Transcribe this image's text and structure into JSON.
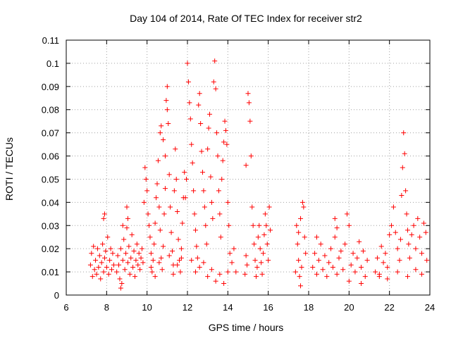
{
  "chart_data": {
    "type": "scatter",
    "title": "Day 104 of 2014, Rate Of TEC Index for receiver str2",
    "xlabel": "GPS time / hours",
    "ylabel": "ROTI / TECUs",
    "xlim": [
      6,
      24
    ],
    "ylim": [
      0,
      0.11
    ],
    "x_ticks": [
      6,
      8,
      10,
      12,
      14,
      16,
      18,
      20,
      22,
      24
    ],
    "y_ticks": [
      0,
      0.01,
      0.02,
      0.03,
      0.04,
      0.05,
      0.06,
      0.07,
      0.08,
      0.09,
      0.1,
      0.11
    ],
    "x_tick_labels": [
      "6",
      "8",
      "10",
      "12",
      "14",
      "16",
      "18",
      "20",
      "22",
      "24"
    ],
    "y_tick_labels": [
      "0",
      "0.01",
      "0.02",
      "0.03",
      "0.04",
      "0.05",
      "0.06",
      "0.07",
      "0.08",
      "0.09",
      "0.1",
      "0.11"
    ],
    "grid": true,
    "legend": "none",
    "marker": "+",
    "color": "#ff0000",
    "series": [
      {
        "points": [
          [
            7.2,
            0.013
          ],
          [
            7.25,
            0.018
          ],
          [
            7.3,
            0.008
          ],
          [
            7.35,
            0.021
          ],
          [
            7.4,
            0.011
          ],
          [
            7.45,
            0.015
          ],
          [
            7.5,
            0.009
          ],
          [
            7.55,
            0.02
          ],
          [
            7.6,
            0.012
          ],
          [
            7.65,
            0.017
          ],
          [
            7.7,
            0.007
          ],
          [
            7.75,
            0.014
          ],
          [
            7.8,
            0.022
          ],
          [
            7.85,
            0.01
          ],
          [
            7.9,
            0.016
          ],
          [
            7.95,
            0.019
          ],
          [
            8.0,
            0.012
          ],
          [
            8.05,
            0.025
          ],
          [
            8.1,
            0.009
          ],
          [
            8.15,
            0.015
          ],
          [
            8.2,
            0.02
          ],
          [
            8.25,
            0.011
          ],
          [
            8.3,
            0.018
          ],
          [
            8.35,
            0.013
          ],
          [
            7.9,
            0.035
          ],
          [
            7.85,
            0.033
          ],
          [
            8.5,
            0.01
          ],
          [
            8.55,
            0.017
          ],
          [
            8.6,
            0.013
          ],
          [
            8.65,
            0.007
          ],
          [
            8.7,
            0.02
          ],
          [
            8.75,
            0.005
          ],
          [
            8.8,
            0.015
          ],
          [
            8.85,
            0.024
          ],
          [
            8.9,
            0.011
          ],
          [
            8.95,
            0.018
          ],
          [
            9.0,
            0.029
          ],
          [
            9.05,
            0.014
          ],
          [
            9.1,
            0.021
          ],
          [
            9.15,
            0.009
          ],
          [
            9.2,
            0.016
          ],
          [
            9.25,
            0.026
          ],
          [
            9.3,
            0.012
          ],
          [
            9.35,
            0.019
          ],
          [
            9.4,
            0.008
          ],
          [
            9.45,
            0.015
          ],
          [
            9.5,
            0.022
          ],
          [
            9.55,
            0.013
          ],
          [
            9.6,
            0.018
          ],
          [
            9.65,
            0.011
          ],
          [
            9.7,
            0.016
          ],
          [
            9.75,
            0.02
          ],
          [
            9.8,
            0.014
          ],
          [
            8.8,
            0.03
          ],
          [
            9.0,
            0.038
          ],
          [
            9.05,
            0.033
          ],
          [
            8.7,
            0.003
          ],
          [
            9.85,
            0.04
          ],
          [
            9.9,
            0.055
          ],
          [
            9.95,
            0.05
          ],
          [
            10.0,
            0.045
          ],
          [
            10.05,
            0.035
          ],
          [
            10.1,
            0.03
          ],
          [
            10.15,
            0.025
          ],
          [
            10.2,
            0.018
          ],
          [
            10.25,
            0.01
          ],
          [
            10.3,
            0.015
          ],
          [
            10.35,
            0.022
          ],
          [
            10.4,
            0.031
          ],
          [
            10.45,
            0.042
          ],
          [
            10.5,
            0.048
          ],
          [
            10.55,
            0.058
          ],
          [
            10.6,
            0.038
          ],
          [
            10.65,
            0.028
          ],
          [
            10.7,
            0.016
          ],
          [
            10.75,
            0.011
          ],
          [
            10.8,
            0.021
          ],
          [
            10.85,
            0.035
          ],
          [
            10.9,
            0.046
          ],
          [
            10.95,
            0.084
          ],
          [
            11.0,
            0.09
          ],
          [
            11.05,
            0.074
          ],
          [
            11.1,
            0.052
          ],
          [
            11.15,
            0.038
          ],
          [
            11.2,
            0.027
          ],
          [
            11.25,
            0.019
          ],
          [
            11.3,
            0.013
          ],
          [
            11.35,
            0.045
          ],
          [
            11.4,
            0.063
          ],
          [
            11.45,
            0.05
          ],
          [
            11.5,
            0.036
          ],
          [
            11.55,
            0.024
          ],
          [
            11.6,
            0.015
          ],
          [
            11.65,
            0.01
          ],
          [
            11.7,
            0.02
          ],
          [
            11.75,
            0.031
          ],
          [
            11.8,
            0.042
          ],
          [
            11.85,
            0.053
          ],
          [
            10.7,
            0.073
          ],
          [
            10.65,
            0.07
          ],
          [
            10.8,
            0.067
          ],
          [
            10.9,
            0.06
          ],
          [
            11.0,
            0.08
          ],
          [
            10.2,
            0.012
          ],
          [
            10.4,
            0.008
          ],
          [
            10.6,
            0.014
          ],
          [
            11.1,
            0.017
          ],
          [
            11.3,
            0.009
          ],
          [
            11.5,
            0.013
          ],
          [
            11.7,
            0.016
          ],
          [
            11.9,
            0.042
          ],
          [
            11.95,
            0.05
          ],
          [
            12.0,
            0.1
          ],
          [
            12.05,
            0.092
          ],
          [
            12.1,
            0.083
          ],
          [
            12.15,
            0.076
          ],
          [
            12.2,
            0.065
          ],
          [
            12.25,
            0.057
          ],
          [
            12.3,
            0.045
          ],
          [
            12.35,
            0.035
          ],
          [
            12.4,
            0.028
          ],
          [
            12.45,
            0.021
          ],
          [
            12.5,
            0.016
          ],
          [
            12.55,
            0.082
          ],
          [
            12.6,
            0.087
          ],
          [
            12.65,
            0.074
          ],
          [
            12.7,
            0.062
          ],
          [
            12.75,
            0.053
          ],
          [
            12.8,
            0.045
          ],
          [
            12.85,
            0.038
          ],
          [
            12.9,
            0.03
          ],
          [
            12.95,
            0.022
          ],
          [
            13.0,
            0.063
          ],
          [
            13.05,
            0.072
          ],
          [
            13.1,
            0.078
          ],
          [
            13.15,
            0.051
          ],
          [
            13.2,
            0.04
          ],
          [
            13.25,
            0.033
          ],
          [
            13.3,
            0.092
          ],
          [
            13.35,
            0.101
          ],
          [
            13.4,
            0.089
          ],
          [
            13.45,
            0.07
          ],
          [
            13.5,
            0.06
          ],
          [
            13.55,
            0.045
          ],
          [
            13.6,
            0.035
          ],
          [
            13.65,
            0.025
          ],
          [
            13.7,
            0.05
          ],
          [
            13.75,
            0.058
          ],
          [
            13.8,
            0.066
          ],
          [
            13.85,
            0.075
          ],
          [
            13.9,
            0.071
          ],
          [
            13.95,
            0.065
          ],
          [
            14.0,
            0.04
          ],
          [
            14.05,
            0.03
          ],
          [
            12.2,
            0.015
          ],
          [
            12.4,
            0.01
          ],
          [
            12.6,
            0.012
          ],
          [
            12.8,
            0.014
          ],
          [
            13.0,
            0.008
          ],
          [
            13.2,
            0.011
          ],
          [
            13.4,
            0.006
          ],
          [
            13.6,
            0.009
          ],
          [
            13.8,
            0.005
          ],
          [
            14.0,
            0.01
          ],
          [
            14.2,
            0.014
          ],
          [
            14.4,
            0.01
          ],
          [
            14.3,
            0.02
          ],
          [
            14.1,
            0.018
          ],
          [
            14.9,
            0.056
          ],
          [
            15.0,
            0.087
          ],
          [
            15.05,
            0.083
          ],
          [
            15.1,
            0.075
          ],
          [
            15.15,
            0.06
          ],
          [
            15.2,
            0.038
          ],
          [
            15.25,
            0.03
          ],
          [
            15.3,
            0.022
          ],
          [
            14.9,
            0.017
          ],
          [
            14.85,
            0.009
          ],
          [
            14.95,
            0.013
          ],
          [
            15.35,
            0.015
          ],
          [
            15.4,
            0.008
          ],
          [
            15.45,
            0.012
          ],
          [
            15.5,
            0.025
          ],
          [
            15.55,
            0.03
          ],
          [
            15.6,
            0.02
          ],
          [
            15.65,
            0.014
          ],
          [
            15.7,
            0.009
          ],
          [
            15.75,
            0.018
          ],
          [
            15.8,
            0.026
          ],
          [
            15.85,
            0.035
          ],
          [
            15.9,
            0.03
          ],
          [
            15.95,
            0.022
          ],
          [
            16.0,
            0.015
          ],
          [
            16.05,
            0.038
          ],
          [
            16.1,
            0.028
          ],
          [
            17.4,
            0.03
          ],
          [
            17.45,
            0.022
          ],
          [
            17.5,
            0.015
          ],
          [
            17.55,
            0.008
          ],
          [
            17.6,
            0.004
          ],
          [
            17.65,
            0.012
          ],
          [
            17.7,
            0.04
          ],
          [
            17.75,
            0.038
          ],
          [
            17.8,
            0.025
          ],
          [
            17.85,
            0.018
          ],
          [
            17.35,
            0.01
          ],
          [
            17.5,
            0.027
          ],
          [
            17.6,
            0.033
          ],
          [
            18.2,
            0.012
          ],
          [
            18.3,
            0.018
          ],
          [
            18.4,
            0.009
          ],
          [
            18.5,
            0.015
          ],
          [
            18.6,
            0.022
          ],
          [
            18.7,
            0.011
          ],
          [
            18.8,
            0.017
          ],
          [
            18.9,
            0.008
          ],
          [
            19.0,
            0.014
          ],
          [
            19.1,
            0.02
          ],
          [
            19.2,
            0.012
          ],
          [
            19.3,
            0.025
          ],
          [
            19.4,
            0.009
          ],
          [
            19.5,
            0.016
          ],
          [
            19.6,
            0.019
          ],
          [
            19.7,
            0.011
          ],
          [
            19.8,
            0.022
          ],
          [
            19.9,
            0.035
          ],
          [
            20.0,
            0.03
          ],
          [
            20.1,
            0.013
          ],
          [
            20.2,
            0.018
          ],
          [
            20.3,
            0.01
          ],
          [
            20.4,
            0.016
          ],
          [
            20.5,
            0.023
          ],
          [
            20.6,
            0.012
          ],
          [
            20.7,
            0.019
          ],
          [
            20.8,
            0.008
          ],
          [
            20.9,
            0.015
          ],
          [
            19.3,
            0.033
          ],
          [
            19.4,
            0.029
          ],
          [
            18.4,
            0.025
          ],
          [
            20.0,
            0.006
          ],
          [
            20.6,
            0.005
          ],
          [
            21.3,
            0.01
          ],
          [
            21.4,
            0.016
          ],
          [
            21.5,
            0.009
          ],
          [
            21.6,
            0.021
          ],
          [
            21.7,
            0.014
          ],
          [
            21.8,
            0.018
          ],
          [
            21.9,
            0.012
          ],
          [
            22.0,
            0.026
          ],
          [
            22.1,
            0.03
          ],
          [
            22.2,
            0.038
          ],
          [
            22.3,
            0.027
          ],
          [
            22.4,
            0.02
          ],
          [
            22.5,
            0.015
          ],
          [
            22.55,
            0.024
          ],
          [
            22.6,
            0.043
          ],
          [
            22.65,
            0.055
          ],
          [
            22.7,
            0.07
          ],
          [
            22.75,
            0.061
          ],
          [
            22.8,
            0.045
          ],
          [
            22.85,
            0.035
          ],
          [
            22.9,
            0.028
          ],
          [
            22.95,
            0.022
          ],
          [
            23.0,
            0.016
          ],
          [
            23.1,
            0.026
          ],
          [
            23.2,
            0.03
          ],
          [
            23.3,
            0.02
          ],
          [
            23.4,
            0.033
          ],
          [
            23.5,
            0.025
          ],
          [
            23.6,
            0.018
          ],
          [
            23.7,
            0.031
          ],
          [
            23.8,
            0.027
          ],
          [
            23.85,
            0.015
          ],
          [
            23.6,
            0.009
          ],
          [
            23.3,
            0.011
          ],
          [
            22.9,
            0.008
          ],
          [
            22.4,
            0.01
          ],
          [
            21.9,
            0.007
          ],
          [
            21.5,
            0.008
          ]
        ]
      }
    ]
  }
}
